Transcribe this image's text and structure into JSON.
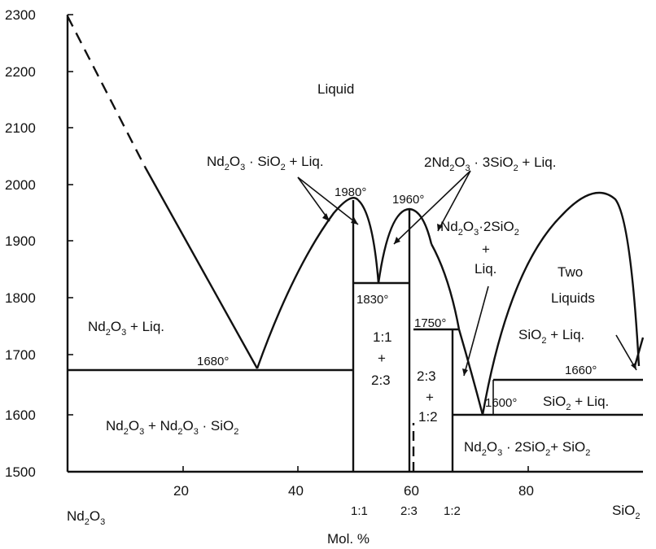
{
  "chart_data": {
    "type": "phase_diagram",
    "xlabel": "Mol. %",
    "x_ticks": [
      "20",
      "40",
      "60",
      "80"
    ],
    "x_end_labels": {
      "left": "Nd2O3",
      "right": "SiO2"
    },
    "compound_labels": [
      "1:1",
      "2:3",
      "1:2"
    ],
    "y_ticks": [
      "2300",
      "2200",
      "2100",
      "2000",
      "1900",
      "1800",
      "1700",
      "1600",
      "1500"
    ],
    "ylim": [
      1500,
      2300
    ],
    "xlim": [
      0,
      100
    ],
    "field_labels": {
      "liquid": "Liquid",
      "nd2o3_liq": "Nd2O3 + Liq.",
      "nd2o3_11": "Nd2O3 + Nd2O3 · SiO2",
      "c11_liq": "Nd2O3 · SiO2 + Liq.",
      "c23_liq": "2Nd2O3 · 3SiO2 + Liq.",
      "c12_liq_a": "Nd2O3 · 2SiO2",
      "c12_liq_b": "+",
      "c12_liq_c": "Liq.",
      "two_liquids_a": "Two",
      "two_liquids_b": "Liquids",
      "sio2_liq_upper": "SiO2 + Liq.",
      "sio2_liq_lower": "SiO2 + Liq.",
      "c11_23_a": "1:1",
      "c11_23_b": "+",
      "c11_23_c": "2:3",
      "c23_12_a": "2:3",
      "c23_12_b": "+",
      "c23_12_c": "1:2",
      "c12_sio2": "Nd2O3 · 2SiO2 + SiO2"
    },
    "temperature_labels": [
      "1980°",
      "1960°",
      "1830°",
      "1750°",
      "1680°",
      "1600°",
      "1660°"
    ],
    "invariant_points": [
      {
        "label": "1980°",
        "x": 49,
        "t": 1980
      },
      {
        "label": "1960°",
        "x": 60,
        "t": 1960
      },
      {
        "label": "1830°",
        "x": 54,
        "t": 1830
      },
      {
        "label": "1750°",
        "x": 67,
        "t": 1750
      },
      {
        "label": "1680°",
        "x": 32,
        "t": 1680
      },
      {
        "label": "1600°",
        "x": 72,
        "t": 1600
      },
      {
        "label": "1660°",
        "x": 98,
        "t": 1660
      }
    ],
    "grid": false
  }
}
